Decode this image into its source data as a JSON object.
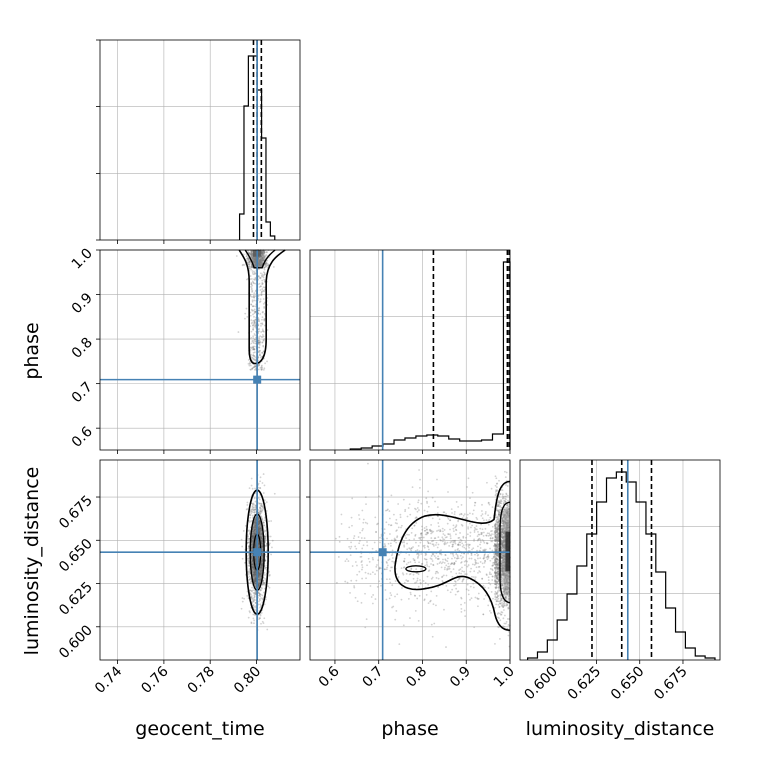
{
  "figure": {
    "type": "corner",
    "params": [
      "geocent_time",
      "phase",
      "luminosity_distance"
    ],
    "axis_labels": [
      "geocent_time",
      "phase",
      "luminosity_distance"
    ],
    "colors": {
      "truth": "#4682b4",
      "hist": "#000000",
      "quantile": "#000000",
      "grid": "#b0b0b0",
      "points": "#7f7f7f"
    }
  },
  "chart_data": [
    {
      "panel": "geocent_time-histogram",
      "type": "bar",
      "xlim": [
        0.7324,
        0.8188
      ],
      "ylim": [
        0,
        1
      ],
      "xticks": [
        0.74,
        0.76,
        0.78,
        0.8
      ],
      "grid": true,
      "bin_edges": [
        0.7927,
        0.7946,
        0.7965,
        0.7984,
        0.8003,
        0.8022,
        0.8041,
        0.806,
        0.8079
      ],
      "values": [
        0.13,
        0.67,
        0.92,
        0.92,
        0.75,
        0.51,
        0.09,
        0.02
      ],
      "quantiles": [
        0.7987,
        0.8003,
        0.8021
      ],
      "truth": 0.8003
    },
    {
      "panel": "phase-histogram",
      "type": "bar",
      "xlim": [
        0.543,
        1.0
      ],
      "ylim": [
        0,
        1
      ],
      "xticks": [
        0.6,
        0.7,
        0.8,
        0.9,
        1.0
      ],
      "grid": true,
      "bin_edges": [
        0.635,
        0.66,
        0.685,
        0.71,
        0.735,
        0.76,
        0.785,
        0.81,
        0.835,
        0.86,
        0.885,
        0.91,
        0.935,
        0.96,
        0.985,
        1.0
      ],
      "values": [
        0.005,
        0.01,
        0.02,
        0.03,
        0.05,
        0.06,
        0.07,
        0.075,
        0.07,
        0.055,
        0.045,
        0.045,
        0.05,
        0.08,
        0.94
      ],
      "quantiles": [
        0.825,
        0.994,
        0.998
      ],
      "truth": 0.709
    },
    {
      "panel": "luminosity_distance-histogram",
      "type": "bar",
      "xlim": [
        0.5808,
        0.6964
      ],
      "ylim": [
        0,
        1
      ],
      "xticks": [
        0.6,
        0.625,
        0.65,
        0.675
      ],
      "grid": true,
      "bin_edges": [
        0.5852,
        0.5909,
        0.5966,
        0.6023,
        0.608,
        0.6137,
        0.6194,
        0.6251,
        0.6308,
        0.6365,
        0.6422,
        0.6479,
        0.6536,
        0.6593,
        0.665,
        0.6707,
        0.6764,
        0.6821,
        0.6878,
        0.6935
      ],
      "values": [
        0.01,
        0.04,
        0.1,
        0.2,
        0.33,
        0.47,
        0.63,
        0.79,
        0.91,
        0.94,
        0.89,
        0.79,
        0.63,
        0.44,
        0.26,
        0.14,
        0.06,
        0.02,
        0.01
      ],
      "quantiles": [
        0.6224,
        0.6396,
        0.6568
      ],
      "truth": 0.6431
    },
    {
      "panel": "phase-vs-geocent_time",
      "type": "scatter",
      "xlim": [
        0.7324,
        0.8188
      ],
      "ylim": [
        0.551,
        1.0
      ],
      "yticks": [
        0.6,
        0.7,
        0.8,
        0.9,
        1.0
      ],
      "truth": [
        0.8003,
        0.709
      ]
    },
    {
      "panel": "luminosity_distance-vs-geocent_time",
      "type": "scatter",
      "xlim": [
        0.7324,
        0.8188
      ],
      "ylim": [
        0.5808,
        0.6964
      ],
      "yticks": [
        0.6,
        0.625,
        0.65,
        0.675
      ],
      "truth": [
        0.8003,
        0.6431
      ]
    },
    {
      "panel": "luminosity_distance-vs-phase",
      "type": "scatter",
      "xlim": [
        0.543,
        1.0
      ],
      "ylim": [
        0.5808,
        0.6964
      ],
      "truth": [
        0.709,
        0.6431
      ]
    }
  ]
}
